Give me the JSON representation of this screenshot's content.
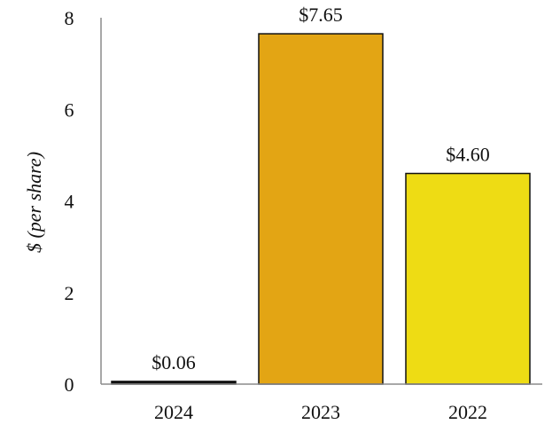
{
  "chart_data": {
    "type": "bar",
    "title": "",
    "xlabel": "",
    "ylabel": "$ (per share)",
    "categories": [
      "2024",
      "2023",
      "2022"
    ],
    "values": [
      0.06,
      7.65,
      4.6
    ],
    "value_labels": [
      "$0.06",
      "$7.65",
      "$4.60"
    ],
    "colors": [
      "#111111",
      "#E3A514",
      "#EEDC14"
    ],
    "ylim": [
      0,
      8
    ],
    "yticks": [
      0,
      2,
      4,
      6,
      8
    ],
    "grid": false,
    "legend": "none"
  }
}
